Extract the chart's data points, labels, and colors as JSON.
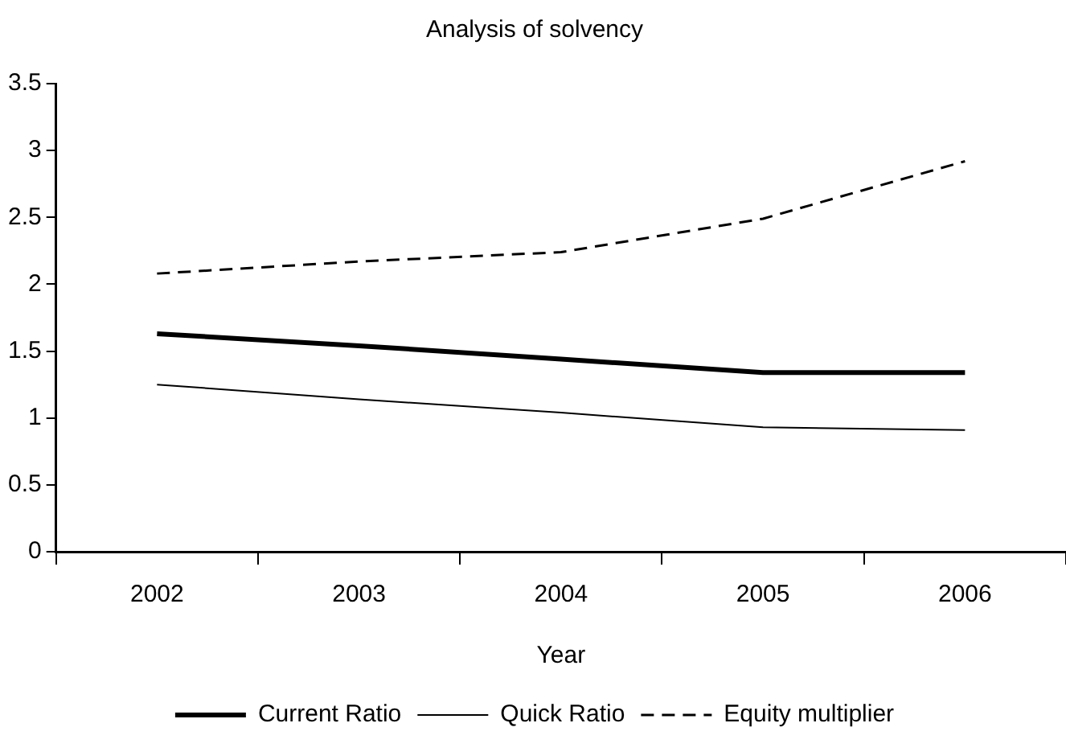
{
  "chart_data": {
    "type": "line",
    "title": "Analysis of solvency",
    "xlabel": "Year",
    "categories": [
      "2002",
      "2003",
      "2004",
      "2005",
      "2006"
    ],
    "series": [
      {
        "name": "Current Ratio",
        "color": "#000000",
        "line_style": "solid",
        "values": [
          1.63,
          1.54,
          1.44,
          1.34,
          1.34
        ]
      },
      {
        "name": "Quick Ratio",
        "color": "#000000",
        "line_style": "solid",
        "values": [
          1.25,
          1.14,
          1.04,
          0.93,
          0.91
        ]
      },
      {
        "name": "Equity multiplier",
        "color": "#000000",
        "line_style": "dashed",
        "values": [
          2.08,
          2.17,
          2.24,
          2.49,
          2.92
        ]
      }
    ],
    "ylim": [
      0,
      3.5
    ],
    "yticks": [
      0,
      0.5,
      1,
      1.5,
      2,
      2.5,
      3,
      3.5
    ],
    "grid": false,
    "legend": "bottom",
    "marker": "none"
  }
}
